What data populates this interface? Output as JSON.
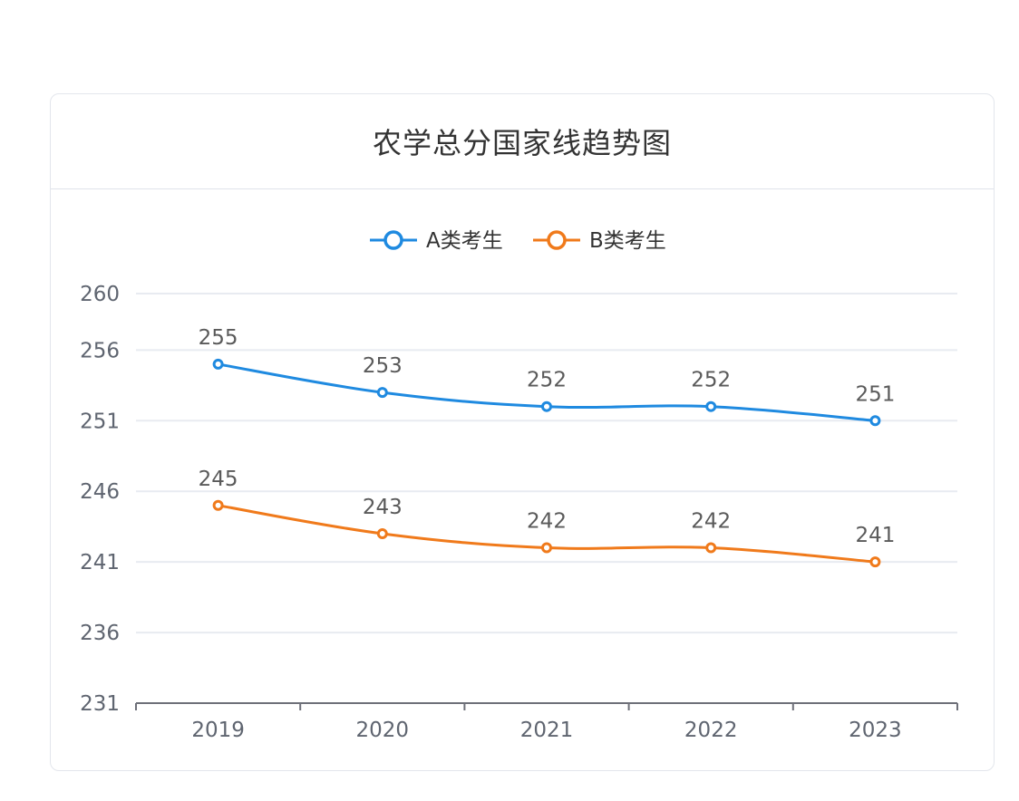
{
  "chart_data": {
    "type": "line",
    "title": "农学总分国家线趋势图",
    "categories": [
      "2019",
      "2020",
      "2021",
      "2022",
      "2023"
    ],
    "series": [
      {
        "name": "A类考生",
        "values": [
          255,
          253,
          252,
          252,
          251
        ],
        "color": "#1f8ae0"
      },
      {
        "name": "B类考生",
        "values": [
          245,
          243,
          242,
          242,
          241
        ],
        "color": "#f07a1b"
      }
    ],
    "y_ticks": [
      "231",
      "236",
      "241",
      "246",
      "251",
      "256",
      "260"
    ],
    "ylim": [
      231,
      260
    ],
    "grid": true,
    "legend_position": "top-center",
    "show_data_labels": true
  }
}
